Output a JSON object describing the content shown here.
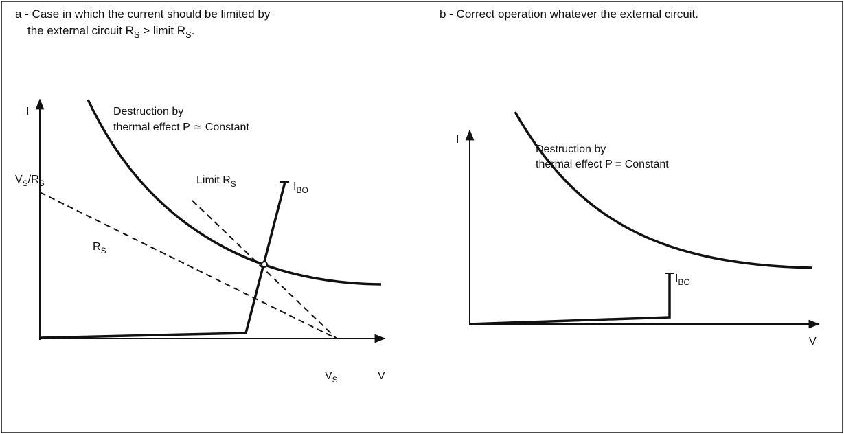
{
  "panel_a": {
    "caption_line_1": [
      "a - Case in which the current should be limited by"
    ],
    "caption_line_2": [
      "the external circuit R",
      "S",
      " > limit R",
      "S",
      "."
    ],
    "y_axis_label": [
      "I"
    ],
    "x_axis_label": [
      "V"
    ],
    "curve_label_1": [
      "Destruction by"
    ],
    "curve_label_2": [
      "thermal effect P ≃ Constant"
    ],
    "vs_rs_label": [
      "V",
      "S",
      "/R",
      "S"
    ],
    "limit_rs_label": [
      "Limit R",
      "S"
    ],
    "ibo_label": [
      "I",
      "BO"
    ],
    "rs_label": [
      "R",
      "S"
    ],
    "vs_label": [
      "V",
      "S"
    ]
  },
  "panel_b": {
    "caption": [
      "b - Correct operation whatever the external circuit."
    ],
    "y_axis_label": [
      "I"
    ],
    "x_axis_label": [
      "V"
    ],
    "curve_label_1": [
      "Destruction by"
    ],
    "curve_label_2": [
      "thermal effect P = Constant"
    ],
    "ibo_label": [
      "I",
      "BO"
    ]
  }
}
